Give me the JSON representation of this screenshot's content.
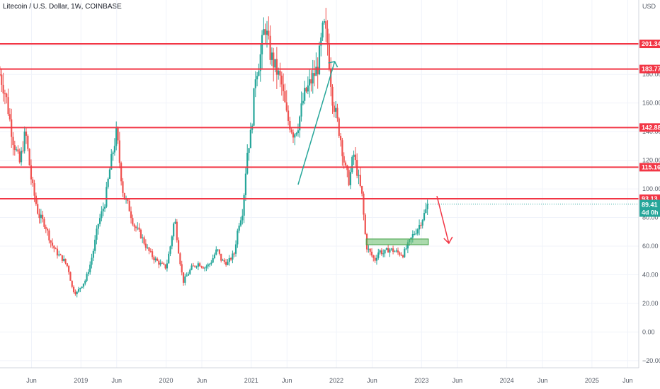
{
  "chart_data": {
    "type": "candlestick",
    "title": "Litecoin / U.S. Dollar, 1W, COINBASE",
    "ylabel": "USD",
    "ylim": [
      -25,
      232
    ],
    "y_ticks": [
      "200.00",
      "180.00",
      "160.00",
      "140.00",
      "120.00",
      "100.00",
      "80.00",
      "60.00",
      "40.00",
      "20.00",
      "0.00",
      "−20.00"
    ],
    "y_tick_values": [
      200,
      180,
      160,
      140,
      120,
      100,
      80,
      60,
      40,
      20,
      0,
      -20
    ],
    "x_ticks": [
      "Jun",
      "2019",
      "Jun",
      "2020",
      "Jun",
      "2021",
      "Jun",
      "2022",
      "Jun",
      "2023",
      "Jun",
      "2024",
      "Jun",
      "2025",
      "Jun"
    ],
    "x_tick_values": [
      2018.42,
      2019.0,
      2019.42,
      2020.0,
      2020.42,
      2021.0,
      2021.42,
      2022.0,
      2022.42,
      2023.0,
      2023.42,
      2024.0,
      2024.42,
      2025.0,
      2025.42
    ],
    "xlim": [
      2018.05,
      2025.55
    ],
    "colors": {
      "up": "#26a69a",
      "down": "#ef5350",
      "level": "#f23645",
      "price": "#26a69a",
      "zone": "#66bb6a",
      "arrow": "#f23645",
      "trend": "#26a69a",
      "grid": "#f0f3fa"
    },
    "levels": [
      {
        "value": 201.34,
        "label": "201.34"
      },
      {
        "value": 183.77,
        "label": "183.77"
      },
      {
        "value": 142.88,
        "label": "142.88"
      },
      {
        "value": 115.16,
        "label": "115.16"
      },
      {
        "value": 93.13,
        "label": "93.13"
      }
    ],
    "last_price": {
      "value": 89.41,
      "label": "89.41",
      "countdown": "4d 0h"
    },
    "zone": {
      "x0": 2022.35,
      "x1": 2023.08,
      "y0": 61,
      "y1": 65
    },
    "trend_arrow": {
      "x0": 2021.55,
      "y0": 103,
      "x1": 2021.98,
      "y1": 189
    },
    "forecast_arrow": {
      "x0": 2023.18,
      "y0": 95,
      "x1": 2023.32,
      "y1": 62
    },
    "path": [
      [
        2018.05,
        180
      ],
      [
        2018.12,
        165
      ],
      [
        2018.2,
        135
      ],
      [
        2018.28,
        118
      ],
      [
        2018.35,
        140
      ],
      [
        2018.42,
        105
      ],
      [
        2018.5,
        82
      ],
      [
        2018.58,
        75
      ],
      [
        2018.65,
        62
      ],
      [
        2018.72,
        55
      ],
      [
        2018.8,
        50
      ],
      [
        2018.85,
        45
      ],
      [
        2018.9,
        30
      ],
      [
        2018.95,
        27
      ],
      [
        2019.0,
        32
      ],
      [
        2019.05,
        36
      ],
      [
        2019.1,
        45
      ],
      [
        2019.15,
        58
      ],
      [
        2019.2,
        75
      ],
      [
        2019.28,
        90
      ],
      [
        2019.35,
        118
      ],
      [
        2019.42,
        140
      ],
      [
        2019.46,
        115
      ],
      [
        2019.5,
        95
      ],
      [
        2019.56,
        88
      ],
      [
        2019.62,
        75
      ],
      [
        2019.7,
        68
      ],
      [
        2019.78,
        58
      ],
      [
        2019.85,
        52
      ],
      [
        2019.92,
        48
      ],
      [
        2020.0,
        45
      ],
      [
        2020.05,
        60
      ],
      [
        2020.1,
        80
      ],
      [
        2020.15,
        55
      ],
      [
        2020.2,
        35
      ],
      [
        2020.25,
        40
      ],
      [
        2020.3,
        45
      ],
      [
        2020.38,
        48
      ],
      [
        2020.45,
        45
      ],
      [
        2020.52,
        48
      ],
      [
        2020.6,
        58
      ],
      [
        2020.65,
        50
      ],
      [
        2020.72,
        48
      ],
      [
        2020.8,
        55
      ],
      [
        2020.85,
        75
      ],
      [
        2020.9,
        85
      ],
      [
        2020.95,
        125
      ],
      [
        2021.0,
        140
      ],
      [
        2021.05,
        180
      ],
      [
        2021.1,
        190
      ],
      [
        2021.16,
        215
      ],
      [
        2021.22,
        195
      ],
      [
        2021.28,
        185
      ],
      [
        2021.35,
        175
      ],
      [
        2021.42,
        150
      ],
      [
        2021.5,
        138
      ],
      [
        2021.55,
        145
      ],
      [
        2021.62,
        165
      ],
      [
        2021.7,
        175
      ],
      [
        2021.78,
        185
      ],
      [
        2021.85,
        215
      ],
      [
        2021.9,
        200
      ],
      [
        2021.95,
        165
      ],
      [
        2022.0,
        150
      ],
      [
        2022.05,
        135
      ],
      [
        2022.1,
        115
      ],
      [
        2022.15,
        105
      ],
      [
        2022.2,
        125
      ],
      [
        2022.25,
        110
      ],
      [
        2022.3,
        95
      ],
      [
        2022.35,
        60
      ],
      [
        2022.4,
        55
      ],
      [
        2022.45,
        50
      ],
      [
        2022.5,
        57
      ],
      [
        2022.55,
        55
      ],
      [
        2022.62,
        58
      ],
      [
        2022.7,
        56
      ],
      [
        2022.78,
        54
      ],
      [
        2022.85,
        62
      ],
      [
        2022.9,
        68
      ],
      [
        2022.95,
        72
      ],
      [
        2023.0,
        78
      ],
      [
        2023.05,
        85
      ],
      [
        2023.08,
        89.41
      ]
    ]
  }
}
